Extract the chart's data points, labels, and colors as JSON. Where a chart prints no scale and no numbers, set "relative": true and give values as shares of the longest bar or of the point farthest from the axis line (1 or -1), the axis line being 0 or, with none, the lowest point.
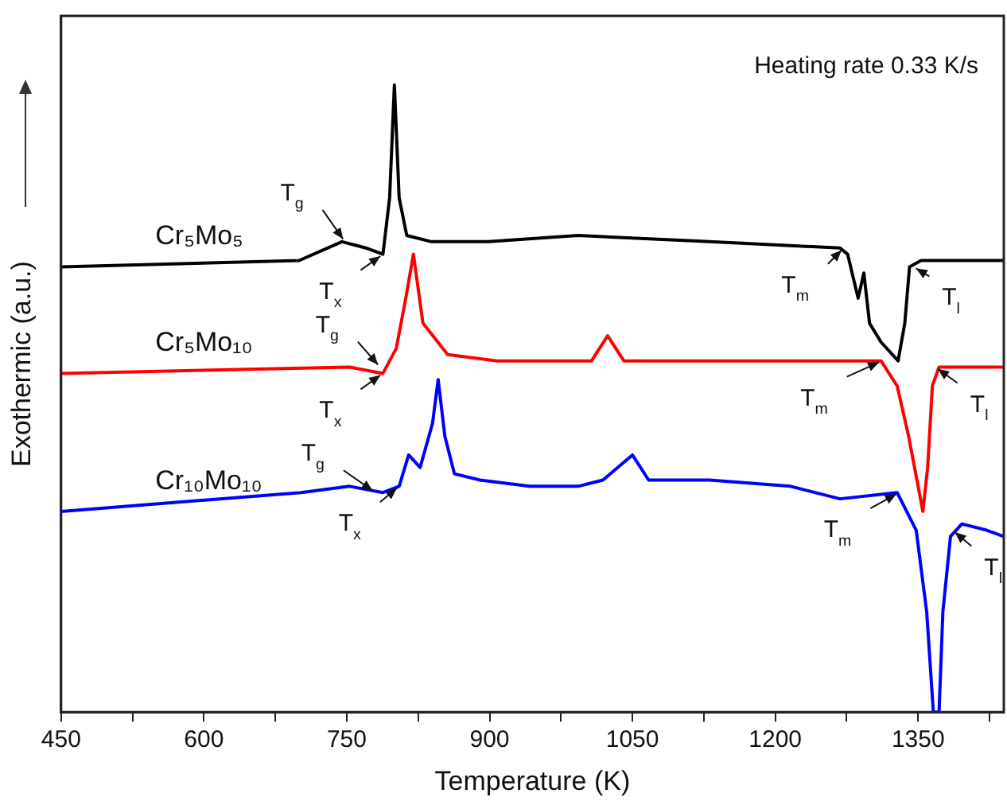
{
  "chart_data": {
    "type": "line",
    "relative": true,
    "xlabel": "Temperature (K)",
    "ylabel": "Exothermic (a.u.)",
    "xlim": [
      450,
      1440
    ],
    "xticks": [
      450,
      {
        "value": 525,
        "label": null
      },
      600,
      {
        "value": 675,
        "label": null
      },
      750,
      {
        "value": 825,
        "label": null
      },
      900,
      {
        "value": 975,
        "label": null
      },
      1050,
      {
        "value": 1125,
        "label": null
      },
      1200,
      {
        "value": 1275,
        "label": null
      },
      1350,
      {
        "value": 1425,
        "label": null
      }
    ],
    "grid": false,
    "legend": false,
    "marker": "none",
    "line_style": "solid",
    "series": [
      {
        "name": "Cr₅Mo₅",
        "color": "#000000",
        "x": [
          450,
          700,
          745,
          770,
          788,
          795,
          800,
          805,
          813,
          839,
          899,
          993,
          1131,
          1268,
          1276,
          1287,
          1293,
          1299,
          1311,
          1323,
          1329,
          1336,
          1341,
          1353,
          1388,
          1440
        ],
        "values": [
          0.71,
          0.72,
          0.75,
          0.74,
          0.73,
          0.82,
          1.0,
          0.82,
          0.76,
          0.75,
          0.75,
          0.76,
          0.75,
          0.74,
          0.73,
          0.66,
          0.7,
          0.62,
          0.59,
          0.57,
          0.56,
          0.62,
          0.71,
          0.72,
          0.72,
          0.72
        ]
      },
      {
        "name": "Cr₅Mo₁₀",
        "color": "#ff0000",
        "x": [
          450,
          753,
          788,
          802,
          812,
          820,
          830,
          856,
          908,
          993,
          1007,
          1024,
          1041,
          1131,
          1216,
          1311,
          1328,
          1340,
          1350,
          1355,
          1360,
          1365,
          1372,
          1386,
          1440
        ],
        "values": [
          0.54,
          0.55,
          0.54,
          0.58,
          0.66,
          0.73,
          0.62,
          0.57,
          0.56,
          0.56,
          0.56,
          0.6,
          0.56,
          0.56,
          0.56,
          0.56,
          0.52,
          0.44,
          0.36,
          0.32,
          0.39,
          0.52,
          0.55,
          0.55,
          0.55
        ]
      },
      {
        "name": "Cr₁₀Mo₁₀",
        "color": "#0000ff",
        "x": [
          450,
          702,
          753,
          788,
          805,
          815,
          827,
          840,
          846,
          853,
          863,
          890,
          942,
          993,
          1019,
          1050,
          1067,
          1131,
          1216,
          1268,
          1328,
          1348,
          1359,
          1366,
          1372,
          1376,
          1384,
          1396,
          1422,
          1440
        ],
        "values": [
          0.32,
          0.35,
          0.36,
          0.35,
          0.36,
          0.41,
          0.39,
          0.46,
          0.53,
          0.44,
          0.38,
          0.37,
          0.36,
          0.36,
          0.37,
          0.41,
          0.37,
          0.37,
          0.36,
          0.34,
          0.35,
          0.29,
          0.16,
          0,
          0,
          0.16,
          0.28,
          0.3,
          0.29,
          0.28
        ]
      }
    ],
    "annotations": [
      "Heating rate 0.33 K/s",
      {
        "text": "T$_{g}$",
        "x": 748,
        "y": 0.75
      },
      {
        "text": "T$_{x}$",
        "x": 788,
        "y": 0.73
      },
      {
        "text": "T$_{m}$",
        "x": 1272,
        "y": 0.74
      },
      {
        "text": "T$_{l}$",
        "x": 1345,
        "y": 0.71
      },
      {
        "text": "T$_{g}$",
        "x": 785,
        "y": 0.55
      },
      {
        "text": "T$_{x}$",
        "x": 788,
        "y": 0.54
      },
      {
        "text": "T$_{m}$",
        "x": 1312,
        "y": 0.56
      },
      {
        "text": "T$_{l}$",
        "x": 1368,
        "y": 0.55
      },
      {
        "text": "T$_{g}$",
        "x": 780,
        "y": 0.35
      },
      {
        "text": "T$_{x}$",
        "x": 805,
        "y": 0.36
      },
      {
        "text": "T$_{m}$",
        "x": 1330,
        "y": 0.35
      },
      {
        "text": "T$_{l}$",
        "x": 1386,
        "y": 0.29
      }
    ]
  }
}
